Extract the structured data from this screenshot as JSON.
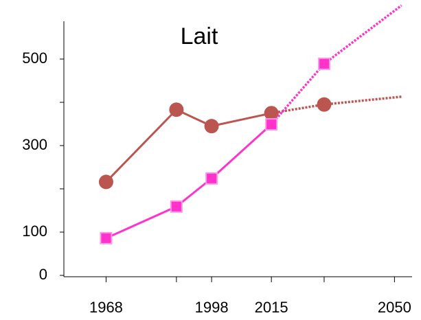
{
  "chart_data": {
    "type": "line",
    "title": "Lait",
    "x": [
      1968,
      1988,
      1998,
      2015,
      2030,
      2052
    ],
    "xlim": [
      1956,
      2055
    ],
    "xticks": [
      1968,
      1998,
      2015,
      2050
    ],
    "xticks_minor": [
      1988,
      2030
    ],
    "ylim": [
      0,
      600
    ],
    "yticks": [
      0,
      100,
      300,
      500
    ],
    "yticks_minor": [
      200,
      400
    ],
    "grid": false,
    "series": [
      {
        "color": "#bb5550",
        "marker": "circle",
        "values": [
          216,
          383,
          345,
          375,
          395,
          413
        ],
        "segment_styles": [
          "solid",
          "solid",
          "solid",
          "dotted",
          "dotted"
        ],
        "markers": [
          true,
          true,
          true,
          true,
          true,
          false
        ]
      },
      {
        "color": "#ff33cc",
        "marker": "square",
        "values": [
          86,
          159,
          224,
          349,
          489,
          624
        ],
        "segment_styles": [
          "solid",
          "solid",
          "solid",
          "dotted",
          "dotted"
        ],
        "markers": [
          true,
          true,
          true,
          true,
          true,
          false
        ]
      }
    ]
  }
}
